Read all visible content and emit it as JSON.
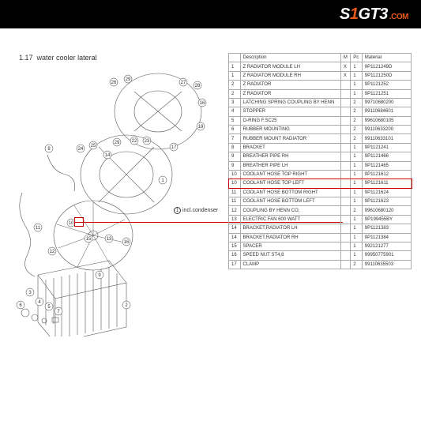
{
  "brand": {
    "s": "S",
    "one": "1",
    "gt3": "GT3",
    "dotcom": ".COM"
  },
  "section": {
    "number": "1.17",
    "title": "water cooler lateral"
  },
  "callout_note": {
    "circled": "1",
    "text": "incl.condenser"
  },
  "diagram_callouts": [
    "1",
    "2",
    "3",
    "4",
    "5",
    "6",
    "7",
    "8",
    "9",
    "10",
    "11",
    "12",
    "13",
    "14",
    "15",
    "16",
    "17",
    "18",
    "22",
    "23",
    "24",
    "25",
    "26",
    "27",
    "28",
    "29"
  ],
  "highlight_row_index": 10,
  "table": {
    "headers": {
      "num": "",
      "desc": "Description",
      "m": "M",
      "pc": "Pc",
      "mat": "Material"
    },
    "rows": [
      {
        "num": "1",
        "desc": "Z RADIATOR MODULE LH",
        "m": "X",
        "pc": "1",
        "mat": "9P1121249D"
      },
      {
        "num": "1",
        "desc": "Z RADIATOR MODULE RH",
        "m": "X",
        "pc": "1",
        "mat": "9P1121250D"
      },
      {
        "num": "2",
        "desc": "Z RADIATOR",
        "m": "",
        "pc": "1",
        "mat": "9P1121252"
      },
      {
        "num": "2",
        "desc": "Z RADIATOR",
        "m": "",
        "pc": "1",
        "mat": "9P1121251"
      },
      {
        "num": "3",
        "desc": "LATCHING SPRING COUPLING BY HENN",
        "m": "",
        "pc": "2",
        "mat": "99710680200"
      },
      {
        "num": "4",
        "desc": "STOPPER",
        "m": "",
        "pc": "2",
        "mat": "99110684601"
      },
      {
        "num": "5",
        "desc": "O-RING F.SC25",
        "m": "",
        "pc": "2",
        "mat": "99610680105"
      },
      {
        "num": "6",
        "desc": "RUBBER MOUNTING",
        "m": "",
        "pc": "2",
        "mat": "99110633200"
      },
      {
        "num": "7",
        "desc": "RUBBER MOUNT RADIATOR",
        "m": "",
        "pc": "2",
        "mat": "99110633101"
      },
      {
        "num": "8",
        "desc": "BRACKET",
        "m": "",
        "pc": "1",
        "mat": "9P1121241"
      },
      {
        "num": "9",
        "desc": "BREATHER PIPE RH",
        "m": "",
        "pc": "1",
        "mat": "9P1121466"
      },
      {
        "num": "9",
        "desc": "BREATHER PIPE LH",
        "m": "",
        "pc": "1",
        "mat": "9P1121465"
      },
      {
        "num": "10",
        "desc": "COOLANT HOSE TOP RIGHT",
        "m": "",
        "pc": "1",
        "mat": "9P1121612"
      },
      {
        "num": "10",
        "desc": "COOLANT HOSE TOP LEFT",
        "m": "",
        "pc": "1",
        "mat": "9P1121611"
      },
      {
        "num": "11",
        "desc": "COOLANT HOSE BOTTOM RIGHT",
        "m": "",
        "pc": "1",
        "mat": "9P1121624"
      },
      {
        "num": "11",
        "desc": "COOLANT HOSE BOTTOM LEFT",
        "m": "",
        "pc": "1",
        "mat": "9P1121623"
      },
      {
        "num": "12",
        "desc": "COUPLING BY HENN CO.",
        "m": "",
        "pc": "2",
        "mat": "99610680120"
      },
      {
        "num": "13",
        "desc": "ELECTRIC FAN 600 WATT",
        "m": "",
        "pc": "1",
        "mat": "9P199455BY"
      },
      {
        "num": "14",
        "desc": "BRACKET,RADIATOR LH",
        "m": "",
        "pc": "1",
        "mat": "9P1121383"
      },
      {
        "num": "14",
        "desc": "BRACKET,RADIATOR RH",
        "m": "",
        "pc": "1",
        "mat": "9P1121384"
      },
      {
        "num": "15",
        "desc": "SPACER",
        "m": "",
        "pc": "1",
        "mat": "992121277"
      },
      {
        "num": "16",
        "desc": "SPEED NUT ST4,8",
        "m": "",
        "pc": "1",
        "mat": "99950775901"
      },
      {
        "num": "17",
        "desc": "CLAMP",
        "m": "",
        "pc": "2",
        "mat": "99110635503"
      }
    ]
  },
  "styles": {
    "header_bg": "#000000",
    "brand_white": "#ffffff",
    "brand_orange": "#e65a1a",
    "border_color": "#aaaaaa",
    "highlight_color": "#cc0000",
    "text_color": "#333333",
    "font_size_table": 6,
    "font_size_title": 9
  }
}
